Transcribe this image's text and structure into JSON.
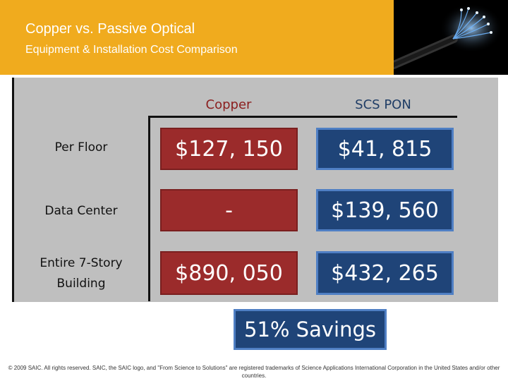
{
  "header": {
    "title": "Copper vs. Passive Optical",
    "subtitle": "Equipment & Installation Cost Comparison"
  },
  "image": {
    "icon": "fiber-optic-cable-icon"
  },
  "table": {
    "columns": [
      "Copper",
      "SCS PON"
    ],
    "rows": [
      {
        "label": "Per Floor",
        "copper": "$127, 150",
        "pon": "$41, 815"
      },
      {
        "label": "Data Center",
        "copper": "-",
        "pon": "$139, 560"
      },
      {
        "label": "Entire 7-Story Building",
        "copper": "$890, 050",
        "pon": "$432, 265"
      }
    ]
  },
  "savings": "51% Savings",
  "footer": "© 2009 SAIC. All rights reserved. SAIC, the SAIC logo, and \"From Science to Solutions\" are registered trademarks of Science Applications International Corporation in the United States and/or other countries.",
  "colors": {
    "header": "#f0ab1e",
    "copper": "#9b2b2b",
    "pon": "#1f4478",
    "panel": "#bfbfbf"
  }
}
